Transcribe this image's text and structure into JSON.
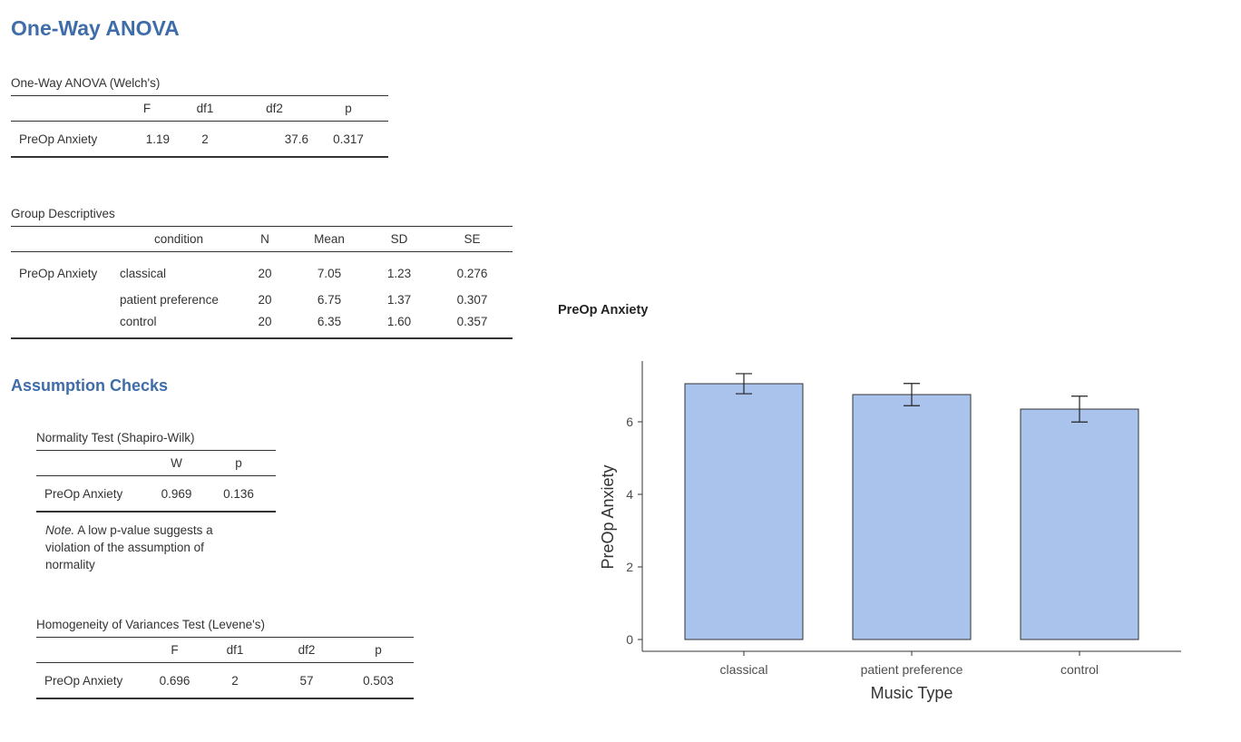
{
  "page": {
    "title": "One-Way ANOVA",
    "assumption_heading": "Assumption Checks"
  },
  "welch": {
    "caption": "One-Way ANOVA (Welch's)",
    "headers": [
      "",
      "F",
      "df1",
      "df2",
      "p"
    ],
    "row": {
      "label": "PreOp Anxiety",
      "F": "1.19",
      "df1": "2",
      "df2": "37.6",
      "p": "0.317"
    }
  },
  "descriptives": {
    "caption": "Group Descriptives",
    "headers": [
      "",
      "condition",
      "N",
      "Mean",
      "SD",
      "SE"
    ],
    "variable": "PreOp Anxiety",
    "rows": [
      {
        "condition": "classical",
        "N": "20",
        "Mean": "7.05",
        "SD": "1.23",
        "SE": "0.276"
      },
      {
        "condition": "patient preference",
        "N": "20",
        "Mean": "6.75",
        "SD": "1.37",
        "SE": "0.307"
      },
      {
        "condition": "control",
        "N": "20",
        "Mean": "6.35",
        "SD": "1.60",
        "SE": "0.357"
      }
    ]
  },
  "normality": {
    "caption": "Normality Test (Shapiro-Wilk)",
    "headers": [
      "",
      "W",
      "p"
    ],
    "row": {
      "label": "PreOp Anxiety",
      "W": "0.969",
      "p": "0.136"
    },
    "note_label": "Note.",
    "note_text": " A low p-value suggests a violation of the assumption of normality"
  },
  "levene": {
    "caption": "Homogeneity of Variances Test (Levene's)",
    "headers": [
      "",
      "F",
      "df1",
      "df2",
      "p"
    ],
    "row": {
      "label": "PreOp Anxiety",
      "F": "0.696",
      "df1": "2",
      "df2": "57",
      "p": "0.503"
    }
  },
  "chart_data": {
    "type": "bar",
    "title": "PreOp Anxiety",
    "categories": [
      "classical",
      "patient preference",
      "control"
    ],
    "values": [
      7.05,
      6.75,
      6.35
    ],
    "error_bars_se": [
      0.276,
      0.307,
      0.357
    ],
    "xlabel": "Music Type",
    "ylabel": "PreOp Anxiety",
    "yticks": [
      0,
      2,
      4,
      6
    ],
    "ylim": [
      0,
      7.5
    ],
    "grid": false,
    "bar_color": "#aac3ec",
    "bar_edge_color": "#333333"
  }
}
